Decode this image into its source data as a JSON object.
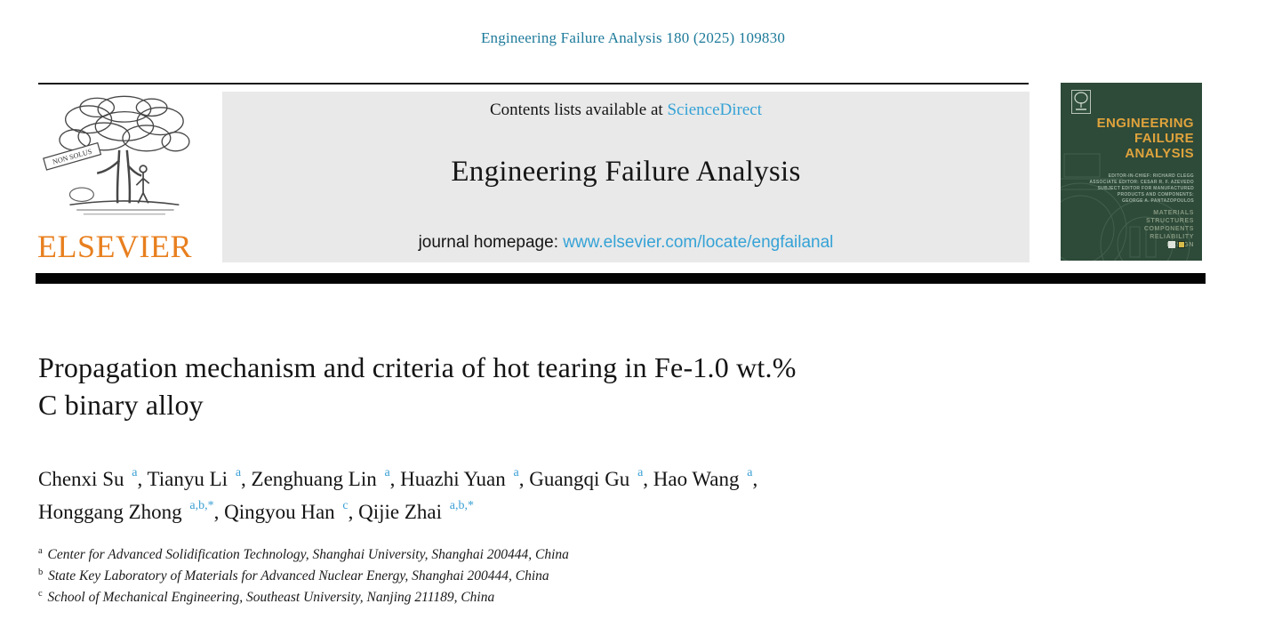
{
  "colors": {
    "citation_teal": "#1d7a9a",
    "link_blue": "#35a2d6",
    "superscript_blue": "#3a9fd4",
    "banner_gray": "#e9e9e9",
    "elsevier_orange": "#e87f1e",
    "cover_green": "#2e4a39",
    "cover_title_orange": "#dfa33c",
    "divider_black": "#030303"
  },
  "page": {
    "journal_ref": "Engineering Failure Analysis 180 (2025) 109830"
  },
  "banner": {
    "contents_prefix": "Contents lists available at ",
    "sciencedirect_link": "ScienceDirect",
    "journal_name": "Engineering Failure Analysis",
    "homepage_prefix": "journal homepage: ",
    "homepage_url": "www.elsevier.com/locate/engfailanal"
  },
  "elsevier": {
    "wordmark": "ELSEVIER",
    "ribbon": "NON SOLUS"
  },
  "cover": {
    "title_lines": [
      "ENGINEERING",
      "FAILURE",
      "ANALYSIS"
    ],
    "editor_lines": [
      "EDITOR-IN-CHIEF: RICHARD CLEGG",
      "ASSOCIATE EDITOR: CESAR R. F. AZEVEDO",
      "SUBJECT EDITOR FOR MANUFACTURED",
      "PRODUCTS AND COMPONENTS:",
      "GEORGE A. PANTAZOPOULOS"
    ],
    "keyword_lines": [
      "MATERIALS",
      "STRUCTURES",
      "COMPONENTS",
      "RELIABILITY",
      "DESIGN"
    ]
  },
  "article": {
    "title_lines": [
      "Propagation mechanism and criteria of hot tearing in Fe-1.0 wt.%",
      "C binary alloy"
    ],
    "authors": [
      {
        "name": "Chenxi Su",
        "sup": "a"
      },
      {
        "name": "Tianyu Li",
        "sup": "a"
      },
      {
        "name": "Zenghuang Lin",
        "sup": "a"
      },
      {
        "name": "Huazhi Yuan",
        "sup": "a"
      },
      {
        "name": "Guangqi Gu",
        "sup": "a"
      },
      {
        "name": "Hao Wang",
        "sup": "a",
        "break_after": true
      },
      {
        "name": "Honggang Zhong",
        "sup": "a,b,*"
      },
      {
        "name": "Qingyou Han",
        "sup": "c"
      },
      {
        "name": "Qijie Zhai",
        "sup": "a,b,*"
      }
    ],
    "affiliations": [
      {
        "sup": "a",
        "text": "Center for Advanced Solidification Technology, Shanghai University, Shanghai 200444, China"
      },
      {
        "sup": "b",
        "text": "State Key Laboratory of Materials for Advanced Nuclear Energy, Shanghai 200444, China"
      },
      {
        "sup": "c",
        "text": "School of Mechanical Engineering, Southeast University, Nanjing 211189, China"
      }
    ]
  }
}
